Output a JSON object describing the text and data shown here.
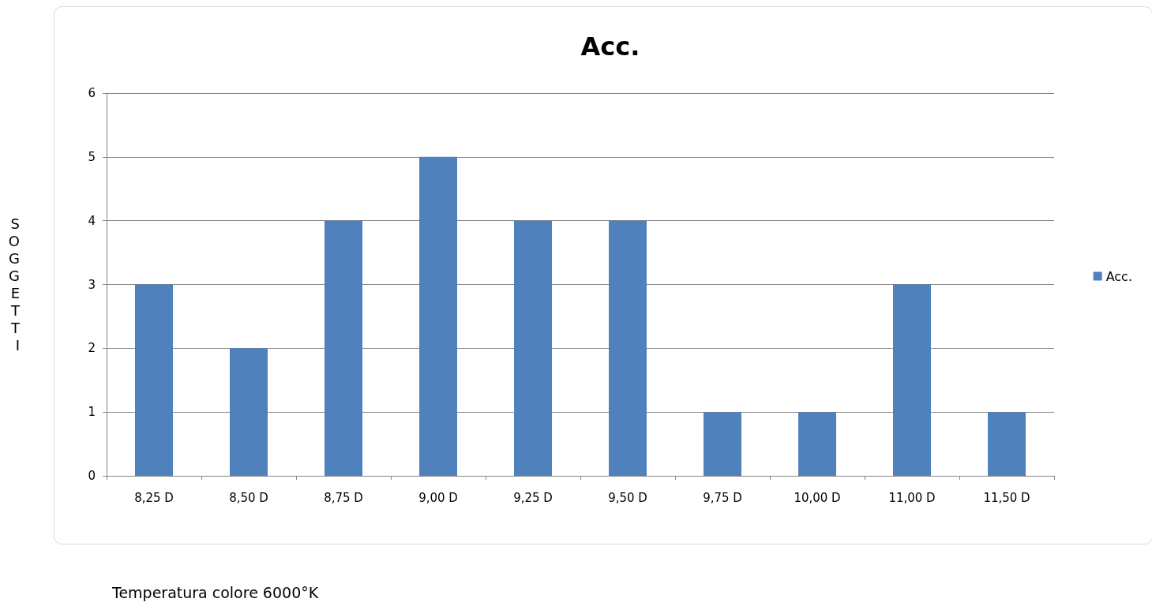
{
  "chart_data": {
    "type": "bar",
    "title": "Acc.",
    "ylabel": "SOGGETTI",
    "categories": [
      "8,25 D",
      "8,50 D",
      "8,75 D",
      "9,00 D",
      "9,25 D",
      "9,50 D",
      "9,75 D",
      "10,00 D",
      "11,00 D",
      "11,50 D"
    ],
    "series": [
      {
        "name": "Acc.",
        "color": "#4f81bd",
        "values": [
          3,
          2,
          4,
          5,
          4,
          4,
          1,
          1,
          3,
          1
        ]
      }
    ],
    "ylim": [
      0,
      6
    ],
    "yticks": [
      0,
      1,
      2,
      3,
      4,
      5,
      6
    ],
    "grid": true,
    "legend": "right",
    "annotations": [
      "Temperatura colore 6000°K"
    ]
  }
}
